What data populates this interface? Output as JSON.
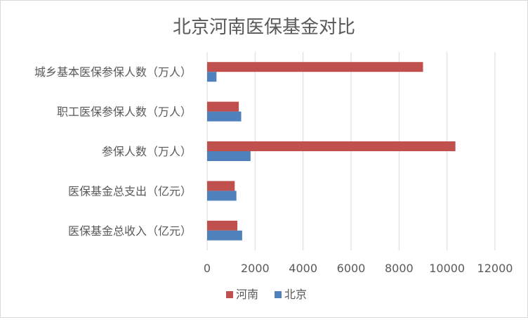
{
  "chart_data": {
    "type": "bar",
    "orientation": "horizontal",
    "title": "北京河南医保基金对比",
    "categories": [
      "城乡基本医保参保人数（万人）",
      "职工医保参保人数（万人）",
      "参保人数（万人）",
      "医保基金总支出（亿元）",
      "医保基金总收入（亿元）"
    ],
    "series": [
      {
        "name": "河南",
        "color": "#c0504d",
        "values": [
          9000,
          1320,
          10350,
          1150,
          1260
        ]
      },
      {
        "name": "北京",
        "color": "#4f81bd",
        "values": [
          390,
          1420,
          1810,
          1220,
          1460
        ]
      }
    ],
    "x_ticks": [
      "0",
      "2000",
      "4000",
      "6000",
      "8000",
      "10000",
      "12000"
    ],
    "xlim": [
      0,
      12000
    ],
    "grid": "vertical",
    "legend_position": "bottom"
  }
}
